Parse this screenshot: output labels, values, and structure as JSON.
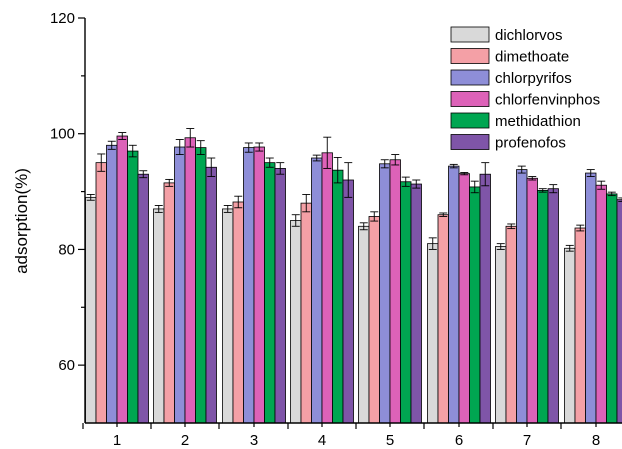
{
  "chart_data": {
    "type": "bar",
    "categories": [
      "1",
      "2",
      "3",
      "4",
      "5",
      "6",
      "7",
      "8"
    ],
    "ylabel": "adsorption(%)",
    "xlabel": "",
    "ylim": [
      50,
      120
    ],
    "yticks": [
      "60",
      "80",
      "100",
      "120"
    ],
    "legend_position": "top-right",
    "grid": false,
    "error_bars": true,
    "series": [
      {
        "name": "dichlorvos",
        "color": "#d9d9d9",
        "values": [
          89.0,
          87.0,
          87.0,
          85.0,
          84.0,
          81.0,
          80.5,
          80.2
        ],
        "errors": [
          0.5,
          0.6,
          0.6,
          1.0,
          0.6,
          1.0,
          0.5,
          0.5
        ]
      },
      {
        "name": "dimethoate",
        "color": "#f4a0a6",
        "values": [
          95.0,
          91.5,
          88.2,
          88.0,
          85.7,
          86.0,
          84.0,
          83.7
        ],
        "errors": [
          1.5,
          0.6,
          1.0,
          1.5,
          0.8,
          0.3,
          0.4,
          0.5
        ]
      },
      {
        "name": "chlorpyrifos",
        "color": "#8e8ed8",
        "values": [
          98.0,
          97.7,
          97.6,
          95.8,
          94.8,
          94.4,
          93.8,
          93.2
        ],
        "errors": [
          0.7,
          1.3,
          0.8,
          0.5,
          0.7,
          0.3,
          0.6,
          0.6
        ]
      },
      {
        "name": "chlorfenvinphos",
        "color": "#dd62b8",
        "values": [
          99.6,
          99.3,
          97.7,
          96.7,
          95.5,
          93.1,
          92.3,
          91.1
        ],
        "errors": [
          0.6,
          1.6,
          0.7,
          2.7,
          0.9,
          0.2,
          0.3,
          0.7
        ]
      },
      {
        "name": "methidathion",
        "color": "#00a651",
        "values": [
          97.0,
          97.6,
          95.0,
          93.7,
          91.7,
          90.8,
          90.2,
          89.6
        ],
        "errors": [
          1.0,
          1.2,
          0.8,
          2.2,
          0.8,
          1.0,
          0.3,
          0.3
        ]
      },
      {
        "name": "profenofos",
        "color": "#7f55a8",
        "values": [
          93.0,
          94.2,
          94.0,
          92.0,
          91.3,
          93.0,
          90.5,
          88.6
        ],
        "errors": [
          0.6,
          1.6,
          1.0,
          3.0,
          0.7,
          2.0,
          0.7,
          0.3
        ]
      }
    ]
  }
}
